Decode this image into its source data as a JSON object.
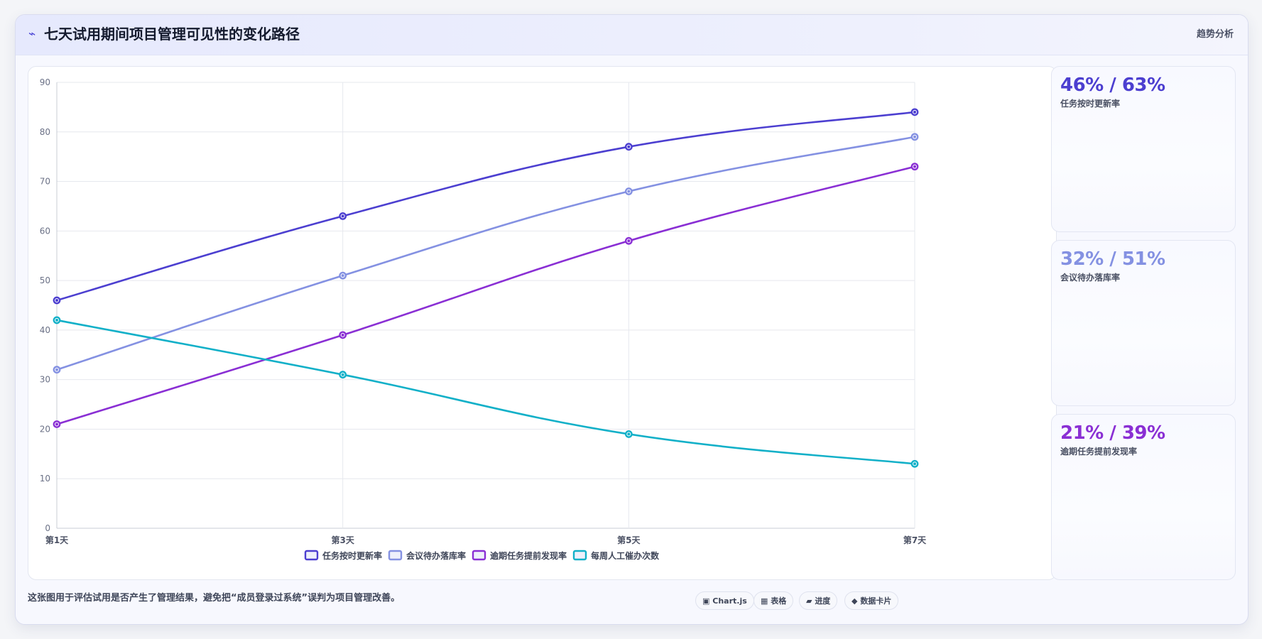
{
  "header": {
    "icon": "lightning-icon",
    "title": "七天试用期间项目管理可见性的变化路径",
    "tag": "趋势分析"
  },
  "chart_data": {
    "type": "line",
    "categories": [
      "第1天",
      "第3天",
      "第5天",
      "第7天"
    ],
    "series": [
      {
        "name": "任务按时更新率",
        "values": [
          46,
          63,
          77,
          84
        ],
        "color": "#4c3fd0"
      },
      {
        "name": "会议待办落库率",
        "values": [
          32,
          51,
          68,
          79
        ],
        "color": "#8491e2"
      },
      {
        "name": "逾期任务提前发现率",
        "values": [
          21,
          39,
          58,
          73
        ],
        "color": "#8a2fd4"
      },
      {
        "name": "每周人工催办次数",
        "values": [
          42,
          31,
          19,
          13
        ],
        "color": "#12b0c8"
      }
    ],
    "ylim": [
      0,
      90
    ],
    "yticks": [
      0,
      10,
      20,
      30,
      40,
      50,
      60,
      70,
      80,
      90
    ],
    "grid": true,
    "legend": "bottom",
    "curve": "smooth"
  },
  "side_cards": [
    {
      "value": "46% / 63%",
      "label": "任务按时更新率",
      "color": "#4c3fd0"
    },
    {
      "value": "32% / 51%",
      "label": "会议待办落库率",
      "color": "#8491e2"
    },
    {
      "value": "21% / 39%",
      "label": "逾期任务提前发现率",
      "color": "#8a2fd4"
    }
  ],
  "footnote": "这张图用于评估试用是否产生了管理结果，避免把“成员登录过系统”误判为项目管理改善。",
  "chips": [
    {
      "icon": "square-icon",
      "glyph": "▣",
      "label": "Chart.js"
    },
    {
      "icon": "table-icon",
      "glyph": "▦",
      "label": "表格"
    },
    {
      "icon": "progress-icon",
      "glyph": "▰",
      "label": "进度"
    },
    {
      "icon": "diamond-icon",
      "glyph": "◆",
      "label": "数据卡片"
    }
  ]
}
